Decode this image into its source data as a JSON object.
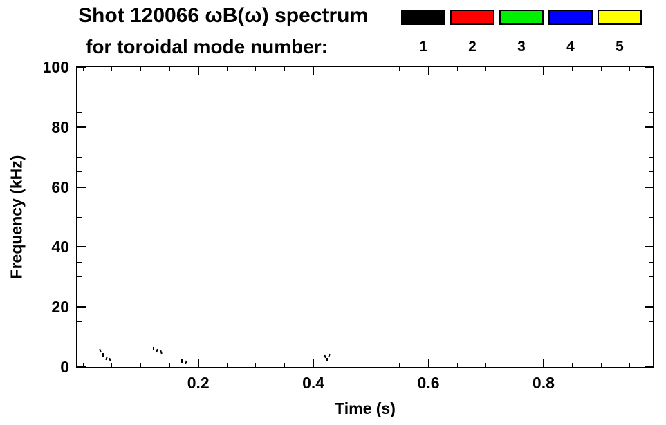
{
  "chart_data": {
    "type": "scatter",
    "title": "Shot 120066 ωB(ω) spectrum",
    "subtitle": "for toroidal mode number:",
    "xlabel": "Time (s)",
    "ylabel": "Frequency (kHz)",
    "xlim": [
      -0.01,
      0.99
    ],
    "ylim": [
      0,
      100
    ],
    "x_ticks": [
      0.2,
      0.4,
      0.6,
      0.8
    ],
    "y_ticks": [
      0,
      20,
      40,
      60,
      80,
      100
    ],
    "x_minor": 0.05,
    "y_minor": 5,
    "grid": false,
    "background": "#ffffff",
    "axis_color": "#000000",
    "legend": {
      "position": "top-right",
      "entries": [
        {
          "label": "1",
          "color": "#000000"
        },
        {
          "label": "2",
          "color": "#ff0000"
        },
        {
          "label": "3",
          "color": "#00ee00"
        },
        {
          "label": "4",
          "color": "#0000ff"
        },
        {
          "label": "5",
          "color": "#ffff00"
        }
      ]
    },
    "series": [
      {
        "name": "n=1",
        "color": "#000000",
        "points": [
          [
            0.03,
            5.5
          ],
          [
            0.034,
            4.2
          ],
          [
            0.04,
            3.0
          ],
          [
            0.047,
            2.6
          ],
          [
            0.122,
            6.2
          ],
          [
            0.128,
            5.6
          ],
          [
            0.135,
            5.0
          ],
          [
            0.172,
            2.0
          ],
          [
            0.179,
            1.7
          ],
          [
            0.42,
            3.6
          ],
          [
            0.424,
            2.6
          ],
          [
            0.428,
            4.0
          ]
        ]
      },
      {
        "name": "n=2",
        "color": "#ff0000",
        "points": []
      },
      {
        "name": "n=3",
        "color": "#00ee00",
        "points": []
      },
      {
        "name": "n=4",
        "color": "#0000ff",
        "points": []
      },
      {
        "name": "n=5",
        "color": "#ffff00",
        "points": []
      }
    ]
  }
}
